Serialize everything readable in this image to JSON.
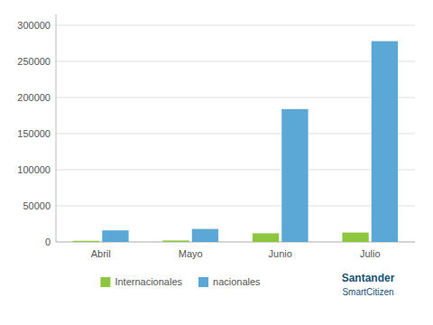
{
  "chart_data": {
    "type": "bar",
    "categories": [
      "Abril",
      "Mayo",
      "Junio",
      "Julio"
    ],
    "series": [
      {
        "name": "Internacionales",
        "color": "#8dc63f",
        "values": [
          1500,
          2000,
          12000,
          13000
        ]
      },
      {
        "name": "nacionales",
        "color": "#5ba7d5",
        "values": [
          16000,
          18000,
          184000,
          278000
        ]
      }
    ],
    "ylim": [
      0,
      315000
    ],
    "yticks": [
      0,
      50000,
      100000,
      150000,
      200000,
      250000,
      300000
    ],
    "grid": true,
    "legend": "bottom",
    "annotations": [
      "Santander",
      "SmartCitizen"
    ]
  }
}
